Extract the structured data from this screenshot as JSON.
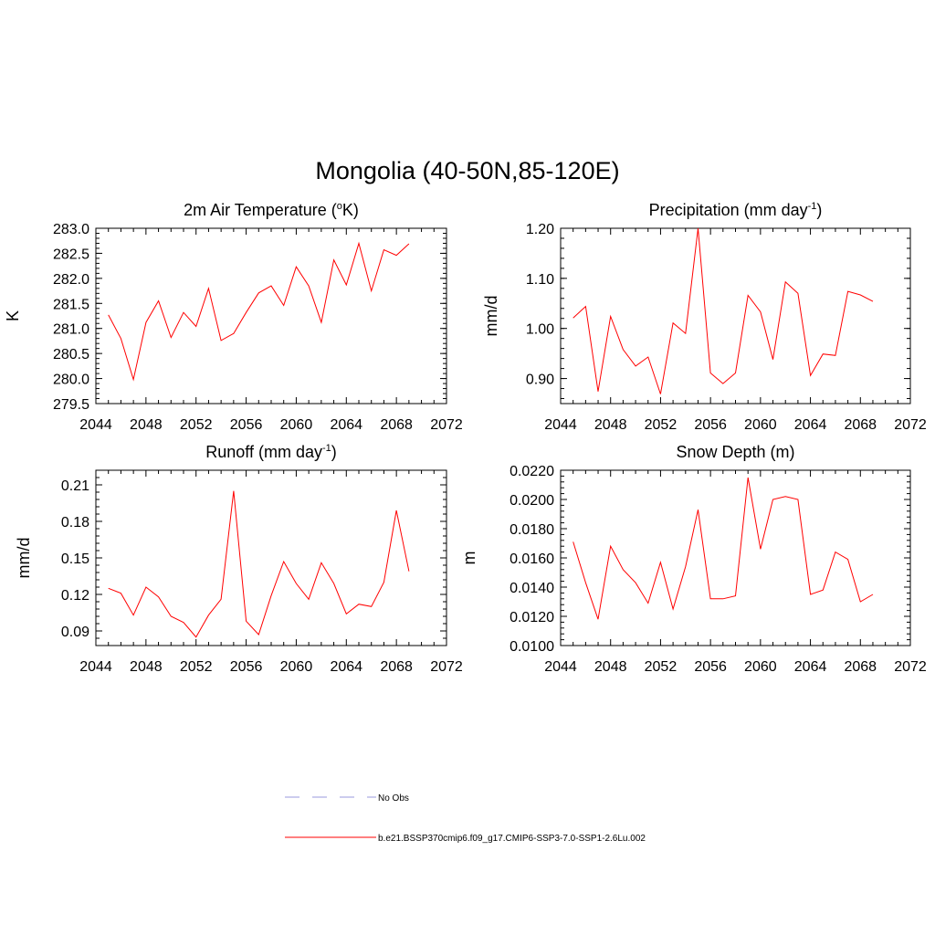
{
  "figure": {
    "title": "Mongolia (40-50N,85-120E)",
    "line_color": "#ff0000",
    "obs_color": "#9999dd"
  },
  "legend": {
    "obs_label": "No Obs",
    "model_label": "b.e21.BSSP370cmip6.f09_g17.CMIP6-SSP3-7.0-SSP1-2.6Lu.002"
  },
  "chart_data": [
    {
      "type": "line",
      "title": "2m Air Temperature (",
      "title_sup": "o",
      "title_tail": "K)",
      "ylabel": "K",
      "xlim": [
        2044,
        2072
      ],
      "ylim": [
        279.5,
        283.0
      ],
      "xticks": [
        "2044",
        "2048",
        "2052",
        "2056",
        "2060",
        "2064",
        "2068",
        "2072"
      ],
      "yticks": [
        "279.5",
        "280.0",
        "280.5",
        "281.0",
        "281.5",
        "282.0",
        "282.5",
        "283.0"
      ],
      "grid": false,
      "x": [
        2045,
        2046,
        2047,
        2048,
        2049,
        2050,
        2051,
        2052,
        2053,
        2054,
        2055,
        2056,
        2057,
        2058,
        2059,
        2060,
        2061,
        2062,
        2063,
        2064,
        2065,
        2066,
        2067,
        2068,
        2069
      ],
      "series": [
        {
          "values": [
            281.27,
            280.8,
            279.98,
            281.12,
            281.55,
            280.82,
            281.32,
            281.04,
            281.8,
            280.76,
            280.9,
            281.32,
            281.71,
            281.85,
            281.46,
            282.23,
            281.85,
            281.12,
            282.37,
            281.87,
            282.7,
            281.75,
            282.57,
            282.46,
            282.69
          ]
        }
      ]
    },
    {
      "type": "line",
      "title": "Precipitation (mm day",
      "title_sup": "-1",
      "title_tail": ")",
      "ylabel": "mm/d",
      "xlim": [
        2044,
        2072
      ],
      "ylim": [
        0.85,
        1.2
      ],
      "xticks": [
        "2044",
        "2048",
        "2052",
        "2056",
        "2060",
        "2064",
        "2068",
        "2072"
      ],
      "yticks": [
        "0.90",
        "1.00",
        "1.10",
        "1.20"
      ],
      "grid": false,
      "x": [
        2045,
        2046,
        2047,
        2048,
        2049,
        2050,
        2051,
        2052,
        2053,
        2054,
        2055,
        2056,
        2057,
        2058,
        2059,
        2060,
        2061,
        2062,
        2063,
        2064,
        2065,
        2066,
        2067,
        2068,
        2069
      ],
      "series": [
        {
          "values": [
            1.021,
            1.044,
            0.874,
            1.024,
            0.958,
            0.925,
            0.943,
            0.869,
            1.011,
            0.99,
            1.2,
            0.911,
            0.89,
            0.911,
            1.066,
            1.033,
            0.938,
            1.093,
            1.07,
            0.906,
            0.949,
            0.946,
            1.074,
            1.067,
            1.054
          ]
        }
      ]
    },
    {
      "type": "line",
      "title": "Runoff (mm day",
      "title_sup": "-1",
      "title_tail": ")",
      "ylabel": "mm/d",
      "xlim": [
        2044,
        2072
      ],
      "ylim": [
        0.078,
        0.222
      ],
      "xticks": [
        "2044",
        "2048",
        "2052",
        "2056",
        "2060",
        "2064",
        "2068",
        "2072"
      ],
      "yticks": [
        "0.09",
        "0.12",
        "0.15",
        "0.18",
        "0.21"
      ],
      "grid": false,
      "x": [
        2045,
        2046,
        2047,
        2048,
        2049,
        2050,
        2051,
        2052,
        2053,
        2054,
        2055,
        2056,
        2057,
        2058,
        2059,
        2060,
        2061,
        2062,
        2063,
        2064,
        2065,
        2066,
        2067,
        2068,
        2069
      ],
      "series": [
        {
          "values": [
            0.125,
            0.121,
            0.103,
            0.126,
            0.118,
            0.102,
            0.097,
            0.085,
            0.103,
            0.116,
            0.205,
            0.098,
            0.087,
            0.119,
            0.147,
            0.129,
            0.116,
            0.146,
            0.129,
            0.104,
            0.112,
            0.11,
            0.13,
            0.189,
            0.139
          ]
        }
      ]
    },
    {
      "type": "line",
      "title": "Snow Depth (m)",
      "title_sup": "",
      "title_tail": "",
      "ylabel": "m",
      "xlim": [
        2044,
        2072
      ],
      "ylim": [
        0.01,
        0.022
      ],
      "xticks": [
        "2044",
        "2048",
        "2052",
        "2056",
        "2060",
        "2064",
        "2068",
        "2072"
      ],
      "yticks": [
        "0.0100",
        "0.0120",
        "0.0140",
        "0.0160",
        "0.0180",
        "0.0200",
        "0.0220"
      ],
      "grid": false,
      "x": [
        2045,
        2046,
        2047,
        2048,
        2049,
        2050,
        2051,
        2052,
        2053,
        2054,
        2055,
        2056,
        2057,
        2058,
        2059,
        2060,
        2061,
        2062,
        2063,
        2064,
        2065,
        2066,
        2067,
        2068,
        2069
      ],
      "series": [
        {
          "values": [
            0.0171,
            0.0143,
            0.0118,
            0.0168,
            0.0152,
            0.0143,
            0.0129,
            0.0157,
            0.0125,
            0.0154,
            0.0193,
            0.0132,
            0.0132,
            0.0134,
            0.0215,
            0.0166,
            0.02,
            0.0202,
            0.02,
            0.0135,
            0.0138,
            0.0164,
            0.0159,
            0.013,
            0.0135
          ]
        }
      ]
    }
  ]
}
